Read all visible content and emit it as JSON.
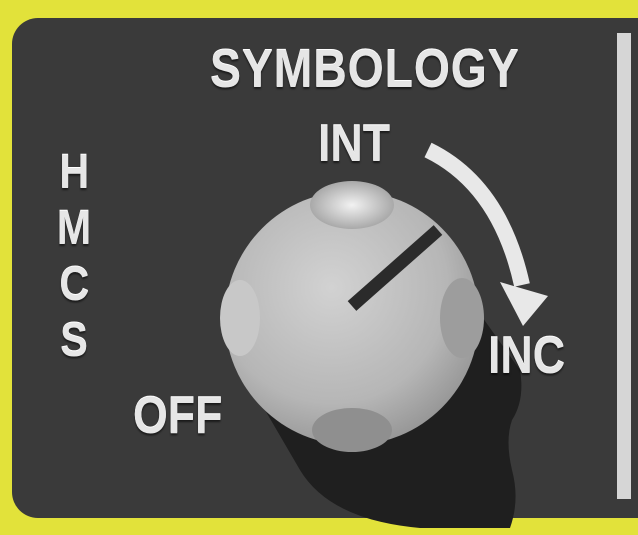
{
  "panel": {
    "title": "SYMBOLOGY",
    "side_label_letters": [
      "H",
      "M",
      "C",
      "S"
    ],
    "positions": {
      "off": "OFF",
      "int": "INT",
      "inc": "INC"
    },
    "direction_arrow_icon": "curved-arrow-clockwise-icon",
    "knob_icon": "rotary-knob-icon"
  },
  "colors": {
    "bezel": "#e2e23a",
    "panel_face": "#3a3a3a",
    "legend_text": "#e6e6e6",
    "knob": "#b9b9b9",
    "knob_pointer": "#2b2b2b"
  }
}
